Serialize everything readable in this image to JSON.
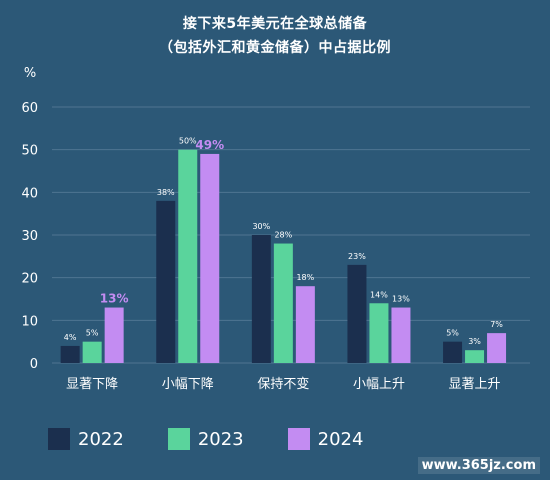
{
  "title_line1": "接下来5年美元在全球总储备",
  "title_line2": "（包括外汇和黄金储备）中占据比例",
  "watermark": "www.365jz.com",
  "colors": {
    "background": "#2c5877",
    "grid": "#4f7592",
    "s2022": "#1b2f4e",
    "s2023": "#5ad49c",
    "s2024": "#c38cf2"
  },
  "chart_data": {
    "type": "bar",
    "title": "接下来5年美元在全球总储备（包括外汇和黄金储备）中占据比例",
    "ylabel": "%",
    "ylim": [
      0,
      60
    ],
    "yticks": [
      "0",
      "10",
      "20",
      "30",
      "40",
      "50",
      "60"
    ],
    "grid": true,
    "legend_position": "bottom",
    "categories": [
      "显著下降",
      "小幅下降",
      "保持不变",
      "小幅上升",
      "显著上升"
    ],
    "series": [
      {
        "name": "2022",
        "color": "#1b2f4e",
        "values": [
          4,
          38,
          30,
          23,
          5
        ],
        "labels": [
          "4%",
          "38%",
          "30%",
          "23%",
          "5%"
        ]
      },
      {
        "name": "2023",
        "color": "#5ad49c",
        "values": [
          5,
          50,
          28,
          14,
          3
        ],
        "labels": [
          "5%",
          "50%",
          "28%",
          "14%",
          "3%"
        ]
      },
      {
        "name": "2024",
        "color": "#c38cf2",
        "values": [
          13,
          49,
          18,
          13,
          7
        ],
        "labels": [
          "13%",
          "49%",
          "18%",
          "13%",
          "7%"
        ]
      }
    ]
  }
}
